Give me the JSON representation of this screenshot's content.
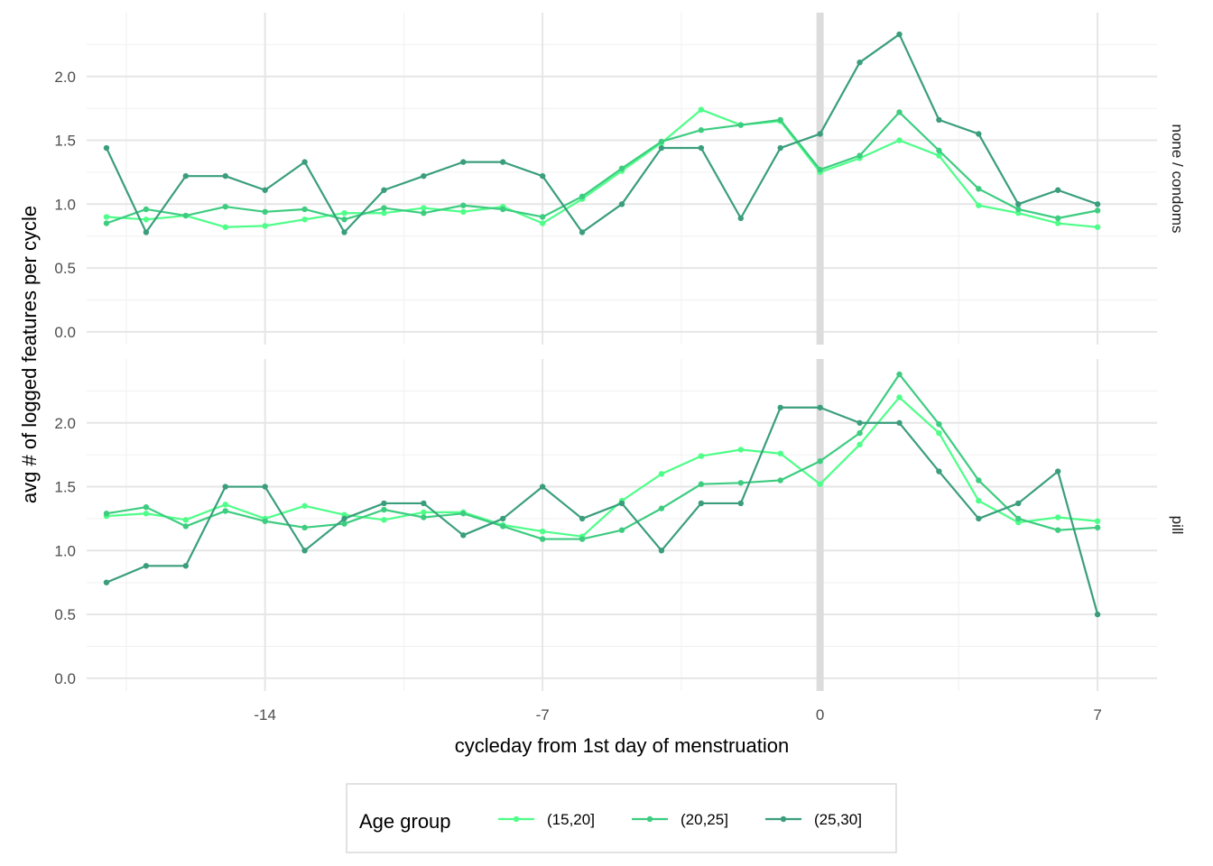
{
  "chart_data": {
    "type": "line",
    "xlabel": "cycleday from 1st day of menstruation",
    "ylabel": "avg # of logged features per cycle",
    "xlim": [
      -18.5,
      8.5
    ],
    "ylim": [
      -0.1,
      2.5
    ],
    "x_ticks": [
      -14,
      -7,
      0,
      7
    ],
    "x_tick_labels": [
      "-14",
      "-7",
      "0",
      "7"
    ],
    "y_ticks": [
      0.0,
      0.5,
      1.0,
      1.5,
      2.0
    ],
    "y_tick_labels": [
      "0.0",
      "0.5",
      "1.0",
      "1.5",
      "2.0"
    ],
    "vline_x": 0,
    "grid": true,
    "legend": {
      "title": "Age group",
      "position": "bottom"
    },
    "x": [
      -18,
      -17,
      -16,
      -15,
      -14,
      -13,
      -12,
      -11,
      -10,
      -9,
      -8,
      -7,
      -6,
      -5,
      -4,
      -3,
      -2,
      -1,
      0,
      1,
      2,
      3,
      4,
      5,
      6,
      7
    ],
    "colors": [
      "#4dff88",
      "#3dcc80",
      "#3a9e7c"
    ],
    "panels": [
      {
        "strip": "none / condoms",
        "series": [
          {
            "name": "(15,20]",
            "values": [
              0.9,
              0.88,
              0.91,
              0.82,
              0.83,
              0.88,
              0.93,
              0.93,
              0.97,
              0.94,
              0.98,
              0.85,
              1.04,
              1.26,
              1.48,
              1.74,
              1.62,
              1.65,
              1.25,
              1.36,
              1.5,
              1.38,
              0.99,
              0.93,
              0.85,
              0.82
            ]
          },
          {
            "name": "(20,25]",
            "values": [
              0.85,
              0.96,
              0.91,
              0.98,
              0.94,
              0.96,
              0.88,
              0.97,
              0.93,
              0.99,
              0.96,
              0.9,
              1.06,
              1.28,
              1.49,
              1.58,
              1.62,
              1.66,
              1.27,
              1.38,
              1.72,
              1.42,
              1.12,
              0.96,
              0.89,
              0.95
            ]
          },
          {
            "name": "(25,30]",
            "values": [
              1.44,
              0.78,
              1.22,
              1.22,
              1.11,
              1.33,
              0.78,
              1.11,
              1.22,
              1.33,
              1.33,
              1.22,
              0.78,
              1.0,
              1.44,
              1.44,
              0.89,
              1.44,
              1.55,
              2.11,
              2.33,
              1.66,
              1.55,
              1.0,
              1.11,
              1.0
            ]
          }
        ]
      },
      {
        "strip": "pill",
        "series": [
          {
            "name": "(15,20]",
            "values": [
              1.27,
              1.29,
              1.24,
              1.36,
              1.25,
              1.35,
              1.28,
              1.24,
              1.3,
              1.3,
              1.2,
              1.15,
              1.11,
              1.39,
              1.6,
              1.74,
              1.79,
              1.76,
              1.52,
              1.83,
              2.2,
              1.92,
              1.39,
              1.22,
              1.26,
              1.23
            ]
          },
          {
            "name": "(20,25]",
            "values": [
              1.29,
              1.34,
              1.19,
              1.31,
              1.23,
              1.18,
              1.21,
              1.32,
              1.26,
              1.29,
              1.19,
              1.09,
              1.09,
              1.16,
              1.33,
              1.52,
              1.53,
              1.55,
              1.7,
              1.92,
              2.38,
              1.99,
              1.55,
              1.25,
              1.16,
              1.18
            ]
          },
          {
            "name": "(25,30]",
            "values": [
              0.75,
              0.88,
              0.88,
              1.5,
              1.5,
              1.0,
              1.25,
              1.37,
              1.37,
              1.12,
              1.25,
              1.5,
              1.25,
              1.37,
              1.0,
              1.37,
              1.37,
              2.12,
              2.12,
              2.0,
              2.0,
              1.62,
              1.25,
              1.37,
              1.62,
              0.5
            ]
          }
        ]
      }
    ]
  }
}
